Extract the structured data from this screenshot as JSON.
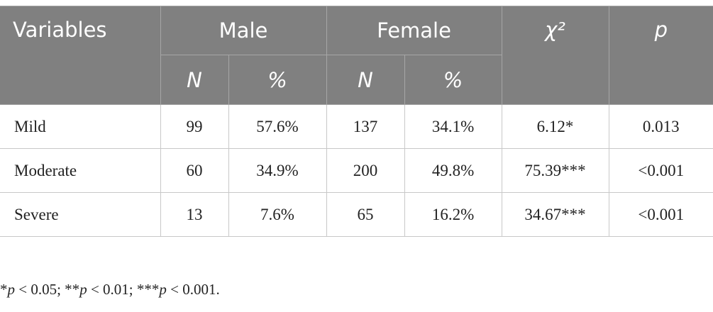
{
  "table": {
    "header": {
      "variables": "Variables",
      "groups": [
        "Male",
        "Female"
      ],
      "subheads": [
        "N",
        "%",
        "N",
        "%"
      ],
      "chi": "χ²",
      "p": "p"
    },
    "rows": [
      [
        "Mild",
        "99",
        "57.6%",
        "137",
        "34.1%",
        "6.12*",
        "0.013"
      ],
      [
        "Moderate",
        "60",
        "34.9%",
        "200",
        "49.8%",
        "75.39***",
        "<0.001"
      ],
      [
        "Severe",
        "13",
        "7.6%",
        "65",
        "16.2%",
        "34.67***",
        "<0.001"
      ]
    ]
  },
  "footnote": [
    "*",
    "p",
    " < 0.05; **",
    "p",
    " < 0.01; ***",
    "p",
    " < 0.001."
  ]
}
